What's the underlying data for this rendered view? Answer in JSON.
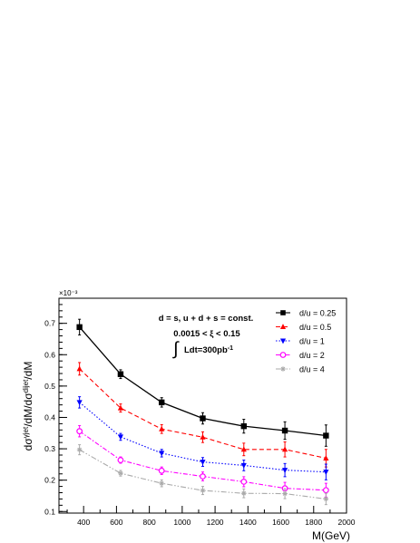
{
  "chart_data": {
    "type": "line",
    "ylabel_base": "dσ",
    "ylabel_sup1": "γjet",
    "ylabel_mid": "/dM/dσ",
    "ylabel_sup2": "dijet",
    "ylabel_end": "/dM",
    "xlabel": "M(GeV)",
    "y_exponent": "×10⁻³",
    "xlim": [
      250,
      2000
    ],
    "ylim": [
      0.095,
      0.78
    ],
    "x_ticks": [
      "400",
      "600",
      "800",
      "1000",
      "1200",
      "1400",
      "1600",
      "1800",
      "2000"
    ],
    "y_ticks": [
      "0.1",
      "0.2",
      "0.3",
      "0.4",
      "0.5",
      "0.6",
      "0.7"
    ],
    "annotations": {
      "line1": "d = s, u + d + s = const.",
      "line2": "0.0015 < ξ < 0.15",
      "integral": "∫",
      "line3_main": "Ldt=300pb",
      "line3_sup": "-1"
    },
    "x": [
      375,
      625,
      875,
      1125,
      1375,
      1625,
      1875
    ],
    "series": [
      {
        "name": "d/u = 0.25",
        "color": "#000000",
        "marker": "square",
        "dash": "",
        "values": [
          0.688,
          0.538,
          0.448,
          0.397,
          0.372,
          0.358,
          0.342
        ],
        "errors": [
          0.025,
          0.014,
          0.015,
          0.018,
          0.022,
          0.028,
          0.034
        ]
      },
      {
        "name": "d/u = 0.5",
        "color": "#ff0000",
        "marker": "triangle-up",
        "dash": "5,3",
        "values": [
          0.555,
          0.43,
          0.363,
          0.337,
          0.298,
          0.298,
          0.27
        ],
        "errors": [
          0.02,
          0.013,
          0.014,
          0.017,
          0.02,
          0.024,
          0.028
        ]
      },
      {
        "name": "d/u = 1",
        "color": "#0000ff",
        "marker": "triangle-down",
        "dash": "1.5,2",
        "values": [
          0.448,
          0.338,
          0.286,
          0.258,
          0.247,
          0.232,
          0.226
        ],
        "errors": [
          0.018,
          0.011,
          0.012,
          0.014,
          0.017,
          0.021,
          0.025
        ]
      },
      {
        "name": "d/u = 2",
        "color": "#ff00ff",
        "marker": "circle-open",
        "dash": "5,2,1.5,2",
        "values": [
          0.356,
          0.264,
          0.23,
          0.212,
          0.195,
          0.174,
          0.168
        ],
        "errors": [
          0.018,
          0.01,
          0.012,
          0.014,
          0.016,
          0.019,
          0.022
        ]
      },
      {
        "name": "d/u = 4",
        "color": "#aaaaaa",
        "marker": "star",
        "dash": "6,2,1.5,2,1.5,2",
        "values": [
          0.297,
          0.222,
          0.19,
          0.167,
          0.158,
          0.157,
          0.14
        ],
        "errors": [
          0.016,
          0.009,
          0.011,
          0.013,
          0.014,
          0.016,
          0.018
        ]
      }
    ]
  }
}
